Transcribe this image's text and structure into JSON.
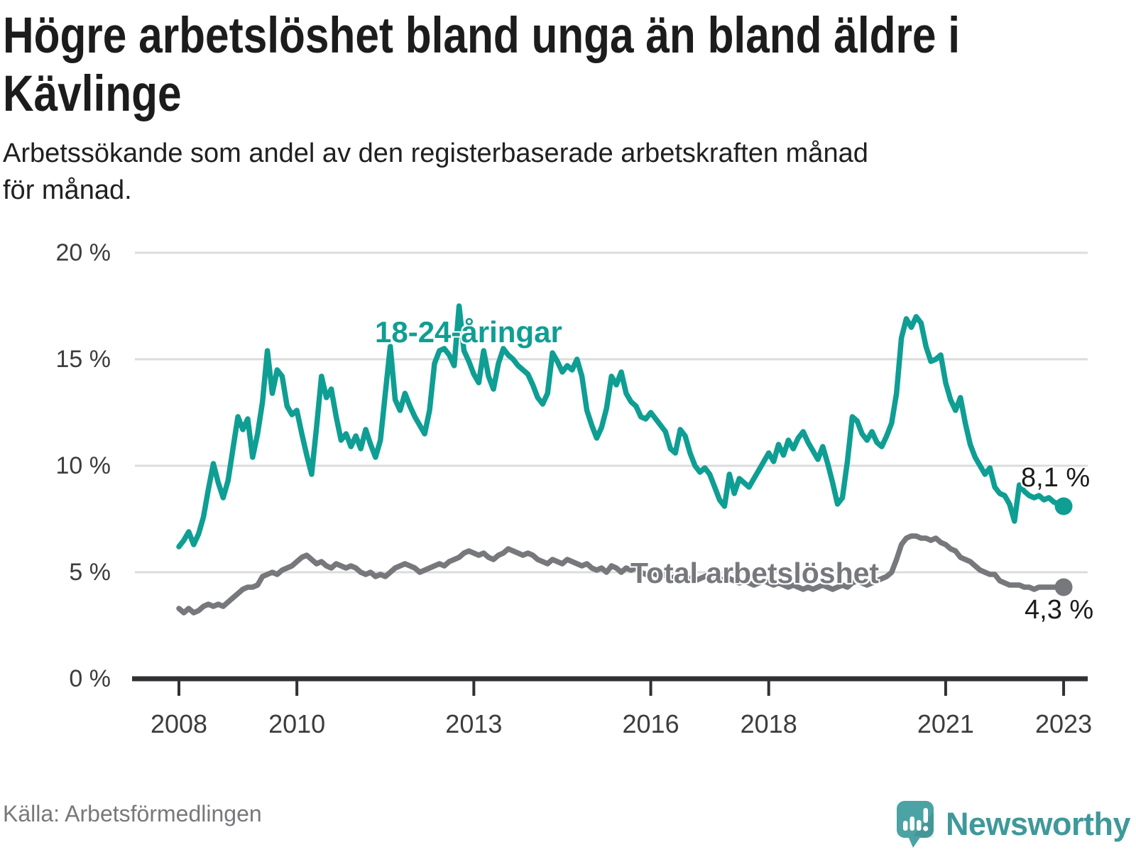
{
  "header": {
    "title": "Högre arbetslöshet bland unga än bland äldre i\nKävlinge",
    "subtitle": "Arbetssökande som andel av den registerbaserade arbetskraften månad\nför månad."
  },
  "chart_data": {
    "type": "line",
    "unit": "%",
    "frequency": "monthly",
    "x_start": "2008-01",
    "x_end": "2023-01",
    "xlim": [
      2008,
      2023.1
    ],
    "ylim": [
      0,
      20
    ],
    "grid": "horizontal",
    "yticks": [
      {
        "label": "0 %",
        "value": 0
      },
      {
        "label": "5 %",
        "value": 5
      },
      {
        "label": "10 %",
        "value": 10
      },
      {
        "label": "15 %",
        "value": 15
      },
      {
        "label": "20 %",
        "value": 20
      }
    ],
    "xticks": [
      {
        "label": "2008",
        "year": 2008
      },
      {
        "label": "2010",
        "year": 2010
      },
      {
        "label": "2013",
        "year": 2013
      },
      {
        "label": "2016",
        "year": 2016
      },
      {
        "label": "2018",
        "year": 2018
      },
      {
        "label": "2021",
        "year": 2021
      },
      {
        "label": "2023",
        "year": 2023
      }
    ],
    "series": [
      {
        "name": "18-24",
        "label": "18-24-åringar",
        "color": "#0f9e93",
        "end_label": "8,1 %",
        "end_value": 8.1,
        "values": [
          6.2,
          6.5,
          6.9,
          6.3,
          6.8,
          7.6,
          8.9,
          10.1,
          9.2,
          8.5,
          9.3,
          10.8,
          12.3,
          11.7,
          12.2,
          10.4,
          11.5,
          13.0,
          15.4,
          13.4,
          14.5,
          14.2,
          12.8,
          12.4,
          12.6,
          11.5,
          10.5,
          9.6,
          11.8,
          14.2,
          13.2,
          13.6,
          12.3,
          11.2,
          11.5,
          10.9,
          11.4,
          10.8,
          11.7,
          11.0,
          10.4,
          11.2,
          13.4,
          15.6,
          13.1,
          12.6,
          13.4,
          12.8,
          12.3,
          11.9,
          11.5,
          12.6,
          14.8,
          15.4,
          15.5,
          15.2,
          14.7,
          17.5,
          15.4,
          14.9,
          14.3,
          13.9,
          15.4,
          14.2,
          13.6,
          14.8,
          15.5,
          15.2,
          15.0,
          14.7,
          14.5,
          14.3,
          13.8,
          13.2,
          12.9,
          13.4,
          15.3,
          14.9,
          14.4,
          14.7,
          14.5,
          15.0,
          14.2,
          12.6,
          11.9,
          11.3,
          11.8,
          12.7,
          14.2,
          13.8,
          14.4,
          13.4,
          13.0,
          12.8,
          12.3,
          12.2,
          12.5,
          12.2,
          11.9,
          11.6,
          10.8,
          10.6,
          11.7,
          11.4,
          10.6,
          10.0,
          9.7,
          9.9,
          9.6,
          9.0,
          8.4,
          8.1,
          9.6,
          8.7,
          9.4,
          9.2,
          9.0,
          9.4,
          9.8,
          10.2,
          10.6,
          10.2,
          11.0,
          10.5,
          11.2,
          10.8,
          11.3,
          11.6,
          11.1,
          10.7,
          10.3,
          10.9,
          10.1,
          9.2,
          8.2,
          8.5,
          10.2,
          12.3,
          12.1,
          11.5,
          11.2,
          11.6,
          11.1,
          10.9,
          11.4,
          12.0,
          13.4,
          16.0,
          16.9,
          16.5,
          17.0,
          16.7,
          15.6,
          14.9,
          15.0,
          15.2,
          13.9,
          13.1,
          12.6,
          13.2,
          12.0,
          11.0,
          10.4,
          10.0,
          9.6,
          9.9,
          9.0,
          8.7,
          8.6,
          8.2,
          7.4,
          9.1,
          8.8,
          8.6,
          8.5,
          8.6,
          8.4,
          8.5,
          8.3,
          8.2,
          8.1
        ]
      },
      {
        "name": "total",
        "label": "Total arbetslöshet",
        "color": "#77787c",
        "end_label": "4,3 %",
        "end_value": 4.3,
        "values": [
          3.3,
          3.1,
          3.3,
          3.1,
          3.2,
          3.4,
          3.5,
          3.4,
          3.5,
          3.4,
          3.6,
          3.8,
          4.0,
          4.2,
          4.3,
          4.3,
          4.4,
          4.8,
          4.9,
          5.0,
          4.9,
          5.1,
          5.2,
          5.3,
          5.5,
          5.7,
          5.8,
          5.6,
          5.4,
          5.5,
          5.3,
          5.2,
          5.4,
          5.3,
          5.2,
          5.3,
          5.2,
          5.0,
          4.9,
          5.0,
          4.8,
          4.9,
          4.8,
          5.0,
          5.2,
          5.3,
          5.4,
          5.3,
          5.2,
          5.0,
          5.1,
          5.2,
          5.3,
          5.4,
          5.3,
          5.5,
          5.6,
          5.7,
          5.9,
          6.0,
          5.9,
          5.8,
          5.9,
          5.7,
          5.6,
          5.8,
          5.9,
          6.1,
          6.0,
          5.9,
          5.8,
          5.9,
          5.8,
          5.6,
          5.5,
          5.4,
          5.6,
          5.5,
          5.4,
          5.6,
          5.5,
          5.4,
          5.3,
          5.4,
          5.2,
          5.1,
          5.2,
          5.0,
          5.3,
          5.2,
          5.0,
          5.2,
          5.1,
          5.2,
          5.0,
          4.9,
          5.0,
          4.9,
          4.8,
          4.9,
          4.7,
          4.8,
          4.9,
          4.8,
          4.7,
          4.6,
          4.7,
          4.8,
          4.9,
          4.8,
          4.7,
          4.6,
          4.7,
          4.6,
          4.5,
          4.6,
          4.5,
          4.4,
          4.5,
          4.6,
          4.5,
          4.4,
          4.5,
          4.4,
          4.3,
          4.4,
          4.3,
          4.2,
          4.3,
          4.2,
          4.3,
          4.4,
          4.3,
          4.2,
          4.3,
          4.4,
          4.3,
          4.5,
          4.6,
          4.5,
          4.4,
          4.5,
          4.6,
          4.7,
          4.8,
          5.0,
          5.6,
          6.3,
          6.6,
          6.7,
          6.7,
          6.6,
          6.6,
          6.5,
          6.6,
          6.4,
          6.3,
          6.1,
          6.0,
          5.7,
          5.6,
          5.5,
          5.3,
          5.1,
          5.0,
          4.9,
          4.9,
          4.6,
          4.5,
          4.4,
          4.4,
          4.4,
          4.3,
          4.3,
          4.2,
          4.3,
          4.3,
          4.3,
          4.3,
          4.3,
          4.3
        ]
      }
    ],
    "title": "Högre arbetslöshet bland unga än bland äldre i Kävlinge",
    "xlabel": "",
    "ylabel": ""
  },
  "footer": {
    "source": "Källa: Arbetsförmedlingen",
    "brand_name": "Newsworthy"
  },
  "colors": {
    "young_line": "#0f9e93",
    "total_line": "#77787c",
    "grid": "#dcdcdd",
    "axis": "#313133",
    "brand_teal": "#4ba3a3"
  }
}
